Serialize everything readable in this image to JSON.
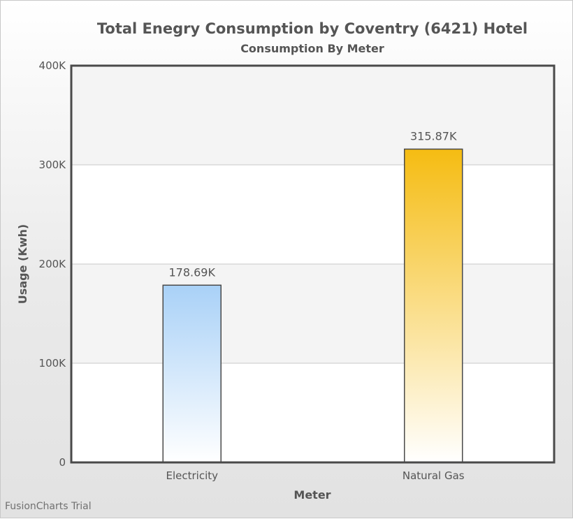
{
  "chart_data": {
    "type": "bar",
    "title": "Total Enegry Consumption by Coventry (6421) Hotel",
    "subtitle": "Consumption By Meter",
    "xlabel": "Meter",
    "ylabel": "Usage (Kwh)",
    "categories": [
      "Electricity",
      "Natural Gas"
    ],
    "values": [
      178690,
      315870
    ],
    "value_labels": [
      "178.69K",
      "315.87K"
    ],
    "ylim": [
      0,
      400000
    ],
    "y_ticks": [
      0,
      100000,
      200000,
      300000,
      400000
    ],
    "y_tick_labels": [
      "0",
      "100K",
      "200K",
      "300K",
      "400K"
    ],
    "grid": true,
    "legend": "none",
    "colors": {
      "electricity": "#a9d1f7",
      "natural_gas": "#f5bc12",
      "band": "#f4f4f4",
      "axis": "#4a4a4a",
      "gridline": "#c8c8c8"
    }
  },
  "watermark": "FusionCharts Trial"
}
